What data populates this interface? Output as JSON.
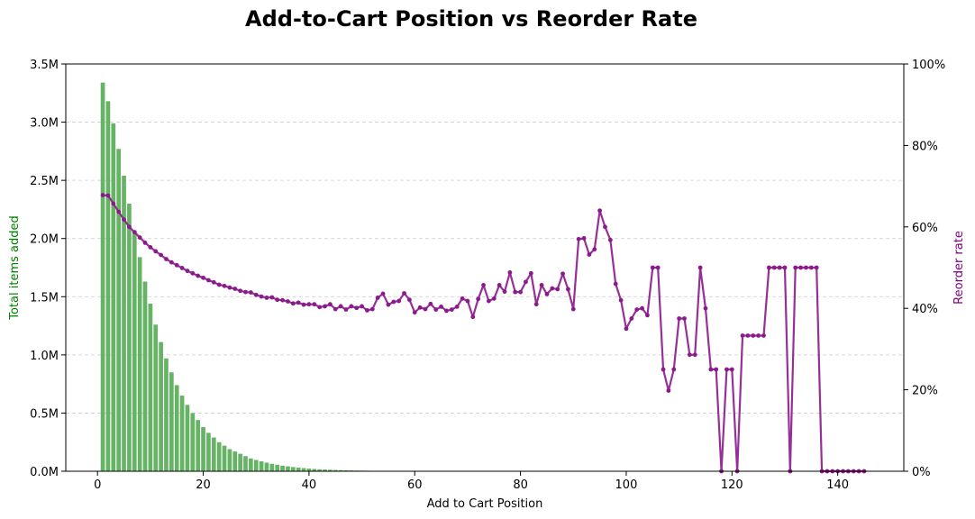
{
  "chart_data": {
    "type": "bar+line",
    "title": "Add-to-Cart Position vs Reorder Rate",
    "xlabel": "Add to Cart Position",
    "ylabel_left": "Total items added",
    "ylabel_right": "Reorder rate",
    "xlim": [
      -6,
      152.5
    ],
    "ylim_left": [
      0,
      3500000
    ],
    "ylim_right": [
      0,
      1
    ],
    "x_ticks": [
      0,
      20,
      40,
      60,
      80,
      100,
      120,
      140
    ],
    "y_left_ticks": [
      {
        "value": 0,
        "label": "0.0M"
      },
      {
        "value": 500000,
        "label": "0.5M"
      },
      {
        "value": 1000000,
        "label": "1.0M"
      },
      {
        "value": 1500000,
        "label": "1.5M"
      },
      {
        "value": 2000000,
        "label": "2.0M"
      },
      {
        "value": 2500000,
        "label": "2.5M"
      },
      {
        "value": 3000000,
        "label": "3.0M"
      },
      {
        "value": 3500000,
        "label": "3.5M"
      }
    ],
    "y_right_ticks": [
      {
        "value": 0,
        "label": "0%"
      },
      {
        "value": 0.2,
        "label": "20%"
      },
      {
        "value": 0.4,
        "label": "40%"
      },
      {
        "value": 0.6,
        "label": "60%"
      },
      {
        "value": 0.8,
        "label": "80%"
      },
      {
        "value": 1.0,
        "label": "100%"
      }
    ],
    "grid": "horizontal dashed",
    "colors": {
      "bars": "#66b366",
      "line": "#8b1a8b",
      "left_label": "#008000",
      "right_label": "#800080"
    },
    "series": [
      {
        "kind": "bar",
        "x": [
          1,
          2,
          3,
          4,
          5,
          6,
          7,
          8,
          9,
          10,
          11,
          12,
          13,
          14,
          15,
          16,
          17,
          18,
          19,
          20,
          21,
          22,
          23,
          24,
          25,
          26,
          27,
          28,
          29,
          30,
          31,
          32,
          33,
          34,
          35,
          36,
          37,
          38,
          39,
          40,
          41,
          42,
          43,
          44,
          45,
          46,
          47,
          48,
          49,
          50,
          51,
          52,
          53,
          54,
          55
        ],
        "values": [
          3340000,
          3180000,
          2990000,
          2770000,
          2540000,
          2300000,
          2070000,
          1840000,
          1630000,
          1440000,
          1260000,
          1110000,
          970000,
          850000,
          740000,
          650000,
          570000,
          500000,
          440000,
          380000,
          330000,
          290000,
          250000,
          220000,
          190000,
          170000,
          150000,
          130000,
          110000,
          97000,
          85000,
          74000,
          64000,
          56000,
          48000,
          42000,
          36000,
          31000,
          27000,
          23000,
          20000,
          17000,
          15000,
          13000,
          11000,
          9500,
          8200,
          7100,
          6100,
          5200,
          4500,
          3900,
          3300,
          2800,
          2400
        ]
      },
      {
        "kind": "line",
        "x": [
          1,
          2,
          3,
          4,
          5,
          6,
          7,
          8,
          9,
          10,
          11,
          12,
          13,
          14,
          15,
          16,
          17,
          18,
          19,
          20,
          21,
          22,
          23,
          24,
          25,
          26,
          27,
          28,
          29,
          30,
          31,
          32,
          33,
          34,
          35,
          36,
          37,
          38,
          39,
          40,
          41,
          42,
          43,
          44,
          45,
          46,
          47,
          48,
          49,
          50,
          51,
          52,
          53,
          54,
          55,
          56,
          57,
          58,
          59,
          60,
          61,
          62,
          63,
          64,
          65,
          66,
          67,
          68,
          69,
          70,
          71,
          72,
          73,
          74,
          75,
          76,
          77,
          78,
          79,
          80,
          81,
          82,
          83,
          84,
          85,
          86,
          87,
          88,
          89,
          90,
          91,
          92,
          93,
          94,
          95,
          96,
          97,
          98,
          99,
          100,
          101,
          102,
          103,
          104,
          105,
          106,
          107,
          108,
          109,
          110,
          111,
          112,
          113,
          114,
          115,
          116,
          117,
          118,
          119,
          120,
          121,
          122,
          123,
          124,
          125,
          126,
          127,
          128,
          129,
          130,
          131,
          132,
          133,
          134,
          135,
          136,
          137,
          138,
          139,
          140,
          141,
          142,
          143,
          144,
          145
        ],
        "values": [
          0.678,
          0.677,
          0.657,
          0.637,
          0.618,
          0.6,
          0.587,
          0.574,
          0.561,
          0.55,
          0.54,
          0.531,
          0.521,
          0.513,
          0.506,
          0.499,
          0.492,
          0.486,
          0.48,
          0.475,
          0.469,
          0.464,
          0.458,
          0.455,
          0.451,
          0.448,
          0.443,
          0.44,
          0.439,
          0.433,
          0.429,
          0.426,
          0.427,
          0.421,
          0.42,
          0.417,
          0.412,
          0.414,
          0.409,
          0.41,
          0.41,
          0.403,
          0.405,
          0.41,
          0.398,
          0.405,
          0.397,
          0.405,
          0.401,
          0.405,
          0.395,
          0.398,
          0.426,
          0.436,
          0.409,
          0.416,
          0.418,
          0.437,
          0.421,
          0.39,
          0.402,
          0.398,
          0.411,
          0.397,
          0.404,
          0.394,
          0.397,
          0.404,
          0.424,
          0.418,
          0.379,
          0.423,
          0.457,
          0.418,
          0.424,
          0.457,
          0.441,
          0.488,
          0.44,
          0.44,
          0.465,
          0.486,
          0.41,
          0.457,
          0.435,
          0.449,
          0.447,
          0.485,
          0.447,
          0.398,
          0.57,
          0.572,
          0.532,
          0.545,
          0.64,
          0.6,
          0.568,
          0.46,
          0.42,
          0.35,
          0.375,
          0.397,
          0.4,
          0.383,
          0.5,
          0.5,
          0.25,
          0.198,
          0.25,
          0.375,
          0.375,
          0.286,
          0.286,
          0.5,
          0.4,
          0.25,
          0.25,
          0.0,
          0.25,
          0.25,
          0.0,
          0.333,
          0.333,
          0.333,
          0.333,
          0.333,
          0.5,
          0.5,
          0.5,
          0.5,
          0.0,
          0.5,
          0.5,
          0.5,
          0.5,
          0.5,
          0.0,
          0.0,
          0.0,
          0.0,
          0.0,
          0.0,
          0.0,
          0.0,
          0.0
        ]
      }
    ]
  }
}
